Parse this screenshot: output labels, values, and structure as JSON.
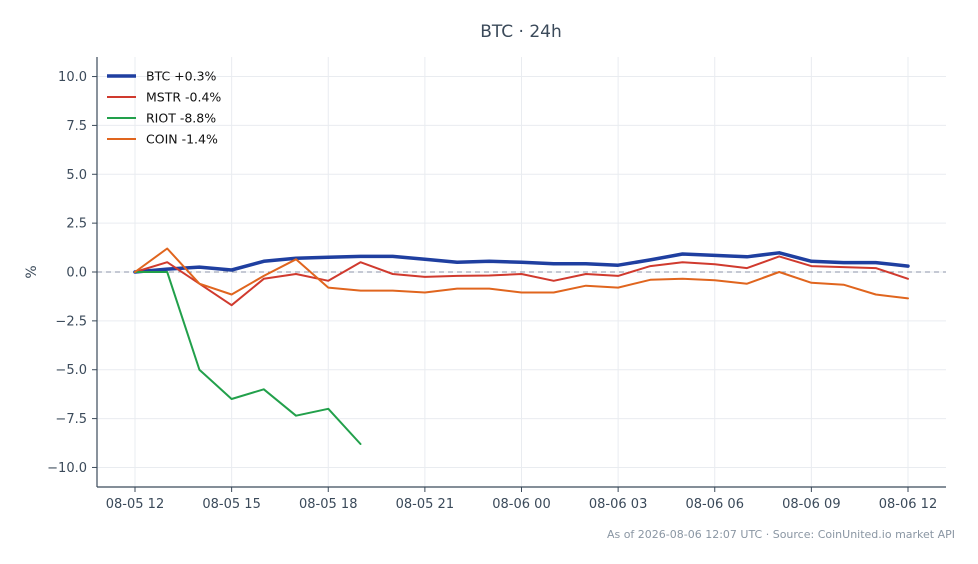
{
  "chart_data": {
    "type": "line",
    "title": "BTC · 24h",
    "xlabel": "",
    "ylabel": "%",
    "ylim": [
      -11,
      11
    ],
    "yticks": [
      10.0,
      7.5,
      5.0,
      2.5,
      0.0,
      -2.5,
      -5.0,
      -7.5,
      -10.0
    ],
    "ytick_labels": [
      "10.0",
      "7.5",
      "5.0",
      "2.5",
      "0.0",
      "−2.5",
      "−5.0",
      "−7.5",
      "−10.0"
    ],
    "x": [
      "08-05 12:00",
      "08-05 13:00",
      "08-05 14:00",
      "08-05 15:00",
      "08-05 16:00",
      "08-05 17:00",
      "08-05 18:00",
      "08-05 19:00",
      "08-05 20:00",
      "08-05 21:00",
      "08-05 22:00",
      "08-05 23:00",
      "08-06 00:00",
      "08-06 01:00",
      "08-06 02:00",
      "08-06 03:00",
      "08-06 04:00",
      "08-06 05:00",
      "08-06 06:00",
      "08-06 07:00",
      "08-06 08:00",
      "08-06 09:00",
      "08-06 10:00",
      "08-06 11:00",
      "08-06 12:00"
    ],
    "xticks": [
      "08-05 12:00",
      "08-05 15:00",
      "08-05 18:00",
      "08-05 21:00",
      "08-06 00:00",
      "08-06 03:00",
      "08-06 06:00",
      "08-06 09:00",
      "08-06 12:00"
    ],
    "xtick_labels": [
      "08-05 12",
      "08-05 15",
      "08-05 18",
      "08-05 21",
      "08-06 00",
      "08-06 03",
      "08-06 06",
      "08-06 09",
      "08-06 12"
    ],
    "grid": true,
    "legend_position": "top-left",
    "reference_line": 0,
    "series": [
      {
        "name": "BTC +0.3%",
        "color": "#1f3fa0",
        "width": 3.5,
        "values": [
          0.0,
          0.15,
          0.25,
          0.1,
          0.55,
          0.7,
          0.75,
          0.8,
          0.8,
          0.65,
          0.5,
          0.55,
          0.5,
          0.42,
          0.42,
          0.35,
          0.62,
          0.92,
          0.85,
          0.78,
          0.98,
          0.55,
          0.48,
          0.48,
          0.3
        ]
      },
      {
        "name": "MSTR -0.4%",
        "color": "#d03a2e",
        "width": 2,
        "values": [
          0.0,
          0.5,
          -0.6,
          -1.7,
          -0.35,
          -0.1,
          -0.45,
          0.5,
          -0.1,
          -0.25,
          -0.2,
          -0.18,
          -0.1,
          -0.45,
          -0.1,
          -0.2,
          0.3,
          0.5,
          0.4,
          0.2,
          0.8,
          0.3,
          0.25,
          0.2,
          -0.35
        ]
      },
      {
        "name": "RIOT -8.8%",
        "color": "#22a04b",
        "width": 2,
        "values": [
          0.0,
          0.0,
          -5.0,
          -6.5,
          -6.0,
          -7.35,
          -7.0,
          -8.8,
          null,
          null,
          null,
          null,
          null,
          null,
          null,
          null,
          null,
          null,
          null,
          null,
          null,
          null,
          null,
          null,
          null
        ]
      },
      {
        "name": "COIN -1.4%",
        "color": "#e0651e",
        "width": 2,
        "values": [
          0.0,
          1.2,
          -0.6,
          -1.15,
          -0.2,
          0.65,
          -0.8,
          -0.95,
          -0.95,
          -1.05,
          -0.85,
          -0.85,
          -1.05,
          -1.05,
          -0.7,
          -0.8,
          -0.4,
          -0.35,
          -0.42,
          -0.6,
          0.0,
          -0.55,
          -0.65,
          -1.15,
          -1.35
        ]
      }
    ]
  },
  "footer": "As of 2026-08-06 12:07 UTC · Source: CoinUnited.io market API"
}
